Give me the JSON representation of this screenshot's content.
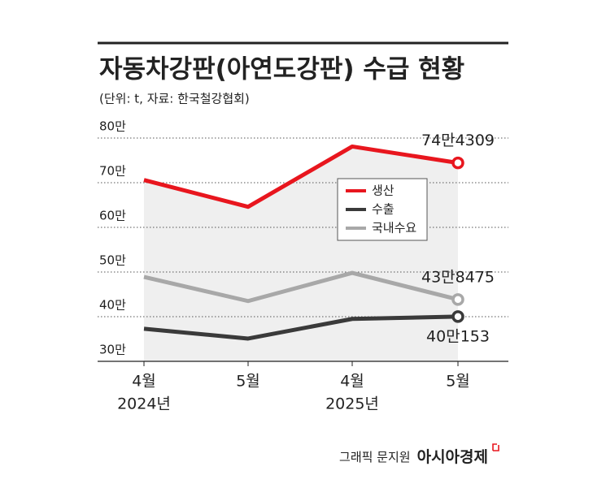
{
  "chart_data": {
    "type": "line",
    "title": "자동차강판(아연도강판) 수급 현황",
    "subtitle": "(단위: t, 자료: 한국철강협회)",
    "categories": [
      "4월",
      "5월",
      "4월",
      "5월"
    ],
    "category_sublabels": [
      "2024년",
      null,
      "2025년",
      null
    ],
    "series": [
      {
        "name": "생산",
        "color": "#e8161e",
        "values": [
          70.6,
          64.6,
          78.1,
          74.4309
        ],
        "value_labels": [
          null,
          null,
          null,
          "74만4309"
        ]
      },
      {
        "name": "수출",
        "color": "#3a3a3a",
        "values": [
          37.3,
          35.1,
          39.5,
          40.0153
        ],
        "value_labels": [
          null,
          null,
          null,
          "40만153"
        ]
      },
      {
        "name": "국내수요",
        "color": "#a8a8a8",
        "values": [
          48.9,
          43.5,
          49.8,
          43.8475
        ],
        "value_labels": [
          null,
          null,
          null,
          "43만8475"
        ]
      }
    ],
    "ylim": [
      30,
      80
    ],
    "yticks": [
      {
        "value": 30,
        "label": "30만"
      },
      {
        "value": 40,
        "label": "40만"
      },
      {
        "value": 50,
        "label": "50만"
      },
      {
        "value": 60,
        "label": "60만"
      },
      {
        "value": 70,
        "label": "70만"
      },
      {
        "value": 80,
        "label": "80만"
      }
    ],
    "grid": true,
    "credit": "그래픽 문지원",
    "publisher": "아시아경제"
  }
}
